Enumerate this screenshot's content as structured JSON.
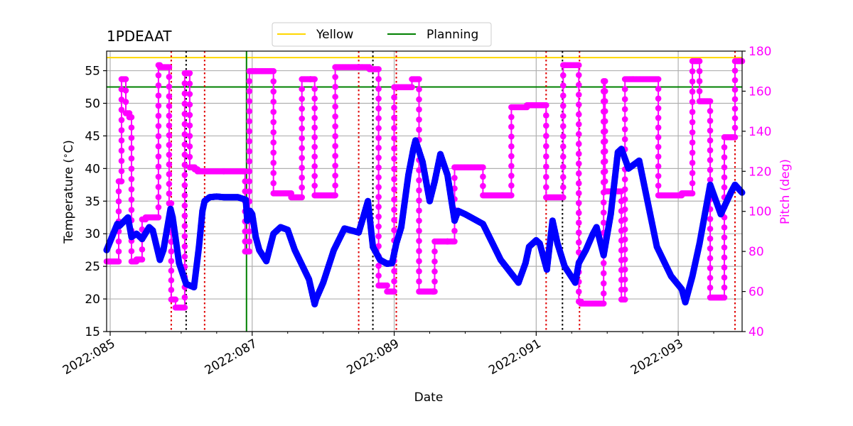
{
  "chart_data": {
    "type": "line",
    "title": "1PDEAAT",
    "xlabel": "Date",
    "ylabel": "Temperature ($^\\circ$C)",
    "ylabel_text": "Temperature (",
    "ylabel_sup": "∘",
    "ylabel_end": "C)",
    "y2label": "Pitch (deg)",
    "xlim": [
      84.95,
      93.9
    ],
    "ylim": [
      15,
      58
    ],
    "y2lim": [
      40,
      180
    ],
    "xticks": [
      {
        "value": 85,
        "label": "2022:085"
      },
      {
        "value": 87,
        "label": "2022:087"
      },
      {
        "value": 89,
        "label": "2022:089"
      },
      {
        "value": 91,
        "label": "2022:091"
      },
      {
        "value": 93,
        "label": "2022:093"
      }
    ],
    "xminor": [
      85.5,
      86,
      86.5,
      87.5,
      88,
      88.5,
      89.5,
      90,
      90.5,
      91.5,
      92,
      92.5,
      93.5
    ],
    "yticks": [
      15,
      20,
      25,
      30,
      35,
      40,
      45,
      50,
      55
    ],
    "y2ticks": [
      40,
      60,
      80,
      100,
      120,
      140,
      160,
      180
    ],
    "grid": true,
    "legend": {
      "placement": "top-center",
      "entries": [
        {
          "name": "Yellow",
          "color": "#ffd700"
        },
        {
          "name": "Planning",
          "color": "#008000"
        }
      ]
    },
    "limits": [
      {
        "name": "Yellow",
        "value": 57,
        "color": "#ffd700"
      },
      {
        "name": "Planning",
        "value": 52.5,
        "color": "#008000"
      }
    ],
    "now_line": {
      "x": 86.92,
      "color": "#008000"
    },
    "red_dotted_x": [
      85.86,
      86.33,
      88.5,
      89.03,
      91.14,
      91.61,
      93.8
    ],
    "black_dotted_x": [
      86.07,
      88.7,
      91.37
    ],
    "colors": {
      "temperature": "#0000ff",
      "pitch": "#ff00ff",
      "red": "#e00000",
      "black": "#000000"
    },
    "series": [
      {
        "name": "Temperature",
        "axis": "left",
        "color": "#0000ff",
        "x": [
          84.95,
          85.1,
          85.13,
          85.25,
          85.3,
          85.37,
          85.45,
          85.55,
          85.6,
          85.7,
          85.75,
          85.85,
          85.88,
          85.97,
          86.07,
          86.18,
          86.25,
          86.3,
          86.33,
          86.4,
          86.5,
          86.6,
          86.8,
          86.91,
          86.93,
          86.97,
          87.0,
          87.05,
          87.1,
          87.2,
          87.3,
          87.4,
          87.5,
          87.6,
          87.8,
          87.88,
          87.9,
          88.0,
          88.15,
          88.3,
          88.5,
          88.55,
          88.63,
          88.7,
          88.8,
          88.9,
          88.97,
          89.03,
          89.1,
          89.2,
          89.27,
          89.3,
          89.4,
          89.5,
          89.57,
          89.65,
          89.75,
          89.85,
          89.9,
          90.0,
          90.25,
          90.5,
          90.75,
          90.85,
          90.9,
          91.0,
          91.05,
          91.15,
          91.23,
          91.3,
          91.4,
          91.55,
          91.6,
          91.7,
          91.8,
          91.85,
          91.95,
          92.05,
          92.15,
          92.2,
          92.3,
          92.45,
          92.7,
          92.9,
          93.05,
          93.1,
          93.2,
          93.3,
          93.45,
          93.6,
          93.75,
          93.8,
          93.9
        ],
        "values": [
          27.5,
          31.5,
          31.2,
          32.5,
          29.5,
          30.0,
          29.2,
          31.0,
          30.5,
          26.0,
          27.5,
          33.8,
          32.5,
          25.5,
          22.3,
          21.8,
          28.0,
          33.5,
          35.0,
          35.6,
          35.7,
          35.6,
          35.6,
          35.2,
          32.0,
          33.5,
          33.0,
          29.5,
          27.5,
          25.8,
          30.0,
          31.0,
          30.6,
          27.5,
          23.0,
          19.2,
          20.0,
          22.5,
          27.5,
          30.8,
          30.2,
          32.0,
          35.0,
          28.0,
          26.0,
          25.4,
          25.5,
          28.5,
          31.0,
          39.0,
          43.0,
          44.3,
          41.0,
          35.0,
          38.0,
          42.2,
          39.0,
          32.0,
          33.5,
          33.0,
          31.5,
          26.0,
          22.5,
          25.5,
          28.0,
          29.0,
          28.5,
          24.5,
          32.0,
          28.5,
          25.0,
          22.5,
          25.5,
          27.5,
          30.0,
          31.0,
          26.7,
          33.0,
          42.5,
          43.0,
          40.0,
          41.2,
          28.0,
          23.5,
          21.5,
          19.5,
          23.5,
          28.5,
          37.5,
          33.0,
          36.5,
          37.5,
          36.3
        ]
      },
      {
        "name": "Pitch",
        "axis": "right",
        "color": "#ff00ff",
        "x": [
          84.95,
          85.12,
          85.12,
          85.16,
          85.16,
          85.22,
          85.22,
          85.27,
          85.27,
          85.3,
          85.3,
          85.37,
          85.37,
          85.45,
          85.45,
          85.5,
          85.5,
          85.68,
          85.68,
          85.7,
          85.7,
          85.83,
          85.83,
          85.86,
          85.86,
          85.92,
          85.92,
          86.05,
          86.05,
          86.12,
          86.12,
          86.19,
          86.19,
          86.23,
          86.23,
          86.33,
          86.33,
          86.6,
          86.6,
          86.9,
          86.9,
          86.96,
          86.96,
          87.05,
          87.05,
          87.3,
          87.3,
          87.55,
          87.55,
          87.7,
          87.7,
          87.82,
          87.82,
          87.88,
          87.88,
          88.15,
          88.15,
          88.17,
          88.17,
          88.5,
          88.5,
          88.65,
          88.65,
          88.78,
          88.78,
          88.9,
          88.9,
          89.0,
          89.0,
          89.25,
          89.25,
          89.35,
          89.35,
          89.55,
          89.55,
          89.57,
          89.57,
          89.75,
          89.75,
          89.85,
          89.85,
          90.25,
          90.25,
          90.65,
          90.65,
          90.87,
          90.87,
          91.14,
          91.14,
          91.38,
          91.38,
          91.4,
          91.4,
          91.6,
          91.6,
          91.63,
          91.63,
          91.95,
          91.95,
          91.97,
          91.97,
          92.2,
          92.2,
          92.25,
          92.25,
          92.72,
          92.72,
          93.05,
          93.05,
          93.2,
          93.2,
          93.3,
          93.3,
          93.45,
          93.45,
          93.65,
          93.65,
          93.8,
          93.8,
          93.9
        ],
        "values": [
          75,
          75,
          115,
          115,
          166,
          166,
          149,
          149,
          147,
          147,
          75,
          75,
          76,
          76,
          96,
          96,
          97,
          97,
          173,
          173,
          172,
          172,
          104,
          104,
          56,
          56,
          52,
          52,
          169,
          169,
          122,
          122,
          121,
          121,
          120,
          120,
          120,
          120,
          120,
          120,
          80,
          80,
          170,
          170,
          170,
          170,
          109,
          109,
          107,
          107,
          166,
          166,
          166,
          166,
          108,
          108,
          108,
          108,
          172,
          172,
          172,
          172,
          171,
          171,
          63,
          63,
          60,
          60,
          162,
          162,
          166,
          166,
          60,
          60,
          60,
          60,
          85,
          85,
          85,
          85,
          122,
          122,
          108,
          108,
          152,
          152,
          153,
          153,
          107,
          107,
          173,
          173,
          173,
          173,
          55,
          55,
          54,
          54,
          165,
          165,
          110,
          110,
          56,
          56,
          166,
          166,
          108,
          108,
          109,
          109,
          175,
          175,
          155,
          155,
          57,
          57,
          137,
          137,
          175,
          175
        ]
      }
    ]
  }
}
